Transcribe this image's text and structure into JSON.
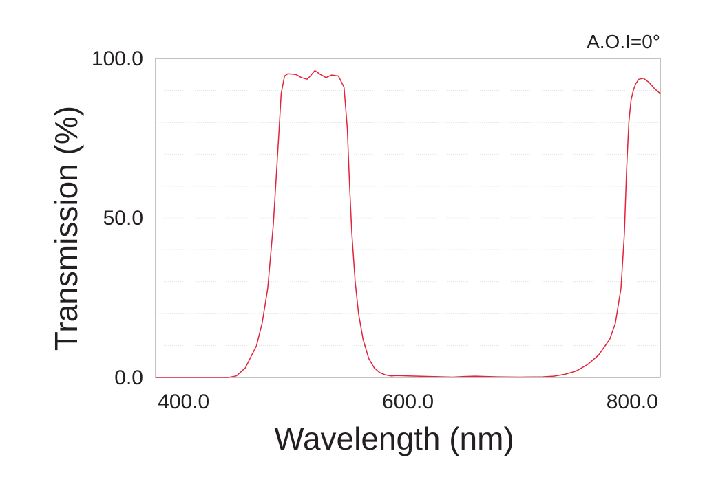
{
  "chart_data": {
    "type": "line",
    "title": "",
    "annotation": "A.O.I=0°",
    "xlabel": "Wavelength (nm)",
    "ylabel": "Transmission (%)",
    "xlim": [
      375,
      825
    ],
    "ylim": [
      0,
      100
    ],
    "x_ticks": [
      400,
      600,
      800
    ],
    "x_tick_labels": [
      "400.0",
      "600.0",
      "800.0"
    ],
    "y_ticks": [
      0,
      50,
      100
    ],
    "y_tick_labels": [
      "0.0",
      "50.0",
      "100.0"
    ],
    "grid": {
      "y_minor_step": 10,
      "y_major_step": 20,
      "style": "dotted"
    },
    "colors": {
      "series": "#e2233a",
      "axis": "#999999",
      "grid": "#9a9a9a",
      "text": "#231f20"
    },
    "series": [
      {
        "x": [
          375,
          400,
          420,
          440,
          447,
          455,
          465,
          470,
          475,
          480,
          485,
          487,
          490,
          493,
          500,
          505,
          510,
          513,
          517,
          522,
          527,
          532,
          538,
          543,
          546,
          548,
          550,
          553,
          556,
          560,
          565,
          570,
          575,
          580,
          585,
          590,
          600,
          620,
          640,
          650,
          660,
          680,
          700,
          720,
          730,
          740,
          750,
          760,
          770,
          780,
          785,
          790,
          793,
          795,
          797,
          799,
          801,
          803,
          806,
          810,
          815,
          820,
          825
        ],
        "y": [
          0,
          0,
          0,
          0,
          0.5,
          3,
          10,
          17,
          28,
          48,
          77,
          89,
          94.5,
          95.2,
          95,
          94,
          93.5,
          94.5,
          96.2,
          95,
          94,
          94.8,
          94.5,
          91,
          78,
          60,
          45,
          30,
          20,
          12,
          6,
          3,
          1.5,
          0.8,
          0.5,
          0.6,
          0.5,
          0.3,
          0.1,
          0.3,
          0.4,
          0.2,
          0.1,
          0.2,
          0.4,
          1,
          2,
          4,
          7,
          12,
          17,
          28,
          45,
          65,
          80,
          87,
          90,
          92,
          93.5,
          93.8,
          92.5,
          90.5,
          89
        ]
      }
    ]
  }
}
